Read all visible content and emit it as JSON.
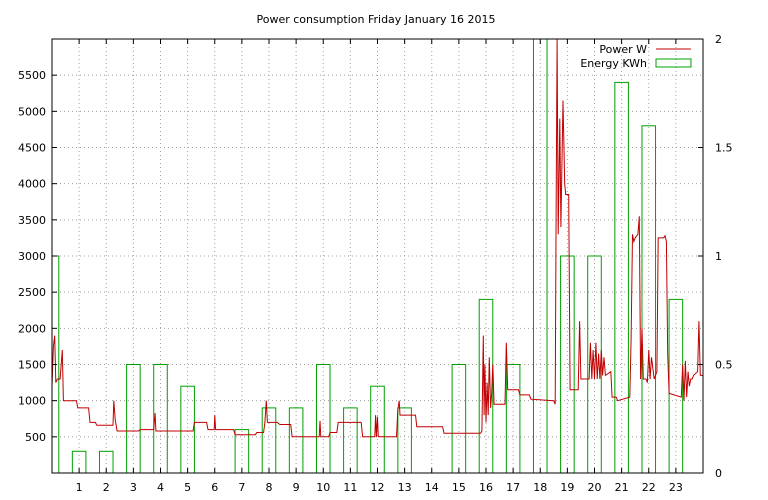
{
  "chart_data": {
    "type": "bar",
    "title": "Power consumption Friday January 16 2015",
    "grid": true,
    "legend_position": "top-right",
    "x_axis": {
      "range": [
        0,
        24
      ],
      "ticks": [
        "1",
        "2",
        "3",
        "4",
        "5",
        "6",
        "7",
        "8",
        "9",
        "10",
        "11",
        "12",
        "13",
        "14",
        "15",
        "16",
        "17",
        "18",
        "19",
        "20",
        "21",
        "22",
        "23"
      ]
    },
    "y_axis_left": {
      "range": [
        0,
        6000
      ],
      "ticks": [
        "500",
        "1000",
        "1500",
        "2000",
        "2500",
        "3000",
        "3500",
        "4000",
        "4500",
        "5000",
        "5500"
      ]
    },
    "y_axis_right": {
      "range": [
        0,
        2
      ],
      "ticks": [
        "0",
        "0.5",
        "1",
        "1.5",
        "2"
      ]
    },
    "series": [
      {
        "name": "Power W",
        "color": "#c00000",
        "axis": "left",
        "type": "line",
        "points": [
          [
            0.0,
            1200
          ],
          [
            0.05,
            1750
          ],
          [
            0.1,
            1900
          ],
          [
            0.14,
            1250
          ],
          [
            0.2,
            1300
          ],
          [
            0.3,
            1300
          ],
          [
            0.38,
            1700
          ],
          [
            0.42,
            1000
          ],
          [
            0.6,
            1000
          ],
          [
            0.9,
            1000
          ],
          [
            0.95,
            900
          ],
          [
            1.35,
            900
          ],
          [
            1.4,
            700
          ],
          [
            1.6,
            700
          ],
          [
            1.65,
            660
          ],
          [
            2.25,
            660
          ],
          [
            2.28,
            1000
          ],
          [
            2.33,
            740
          ],
          [
            2.4,
            580
          ],
          [
            2.6,
            580
          ],
          [
            3.2,
            580
          ],
          [
            3.25,
            600
          ],
          [
            3.5,
            600
          ],
          [
            3.75,
            600
          ],
          [
            3.8,
            830
          ],
          [
            3.83,
            580
          ],
          [
            4.3,
            580
          ],
          [
            5.2,
            580
          ],
          [
            5.25,
            700
          ],
          [
            5.7,
            700
          ],
          [
            5.75,
            600
          ],
          [
            5.98,
            600
          ],
          [
            6.0,
            800
          ],
          [
            6.03,
            600
          ],
          [
            6.7,
            600
          ],
          [
            6.75,
            530
          ],
          [
            7.5,
            530
          ],
          [
            7.55,
            560
          ],
          [
            7.8,
            560
          ],
          [
            7.85,
            700
          ],
          [
            7.9,
            1000
          ],
          [
            7.94,
            700
          ],
          [
            8.3,
            700
          ],
          [
            8.4,
            670
          ],
          [
            8.8,
            670
          ],
          [
            8.85,
            500
          ],
          [
            9.85,
            500
          ],
          [
            9.88,
            720
          ],
          [
            9.91,
            500
          ],
          [
            10.2,
            500
          ],
          [
            10.25,
            560
          ],
          [
            10.5,
            560
          ],
          [
            10.55,
            700
          ],
          [
            11.4,
            700
          ],
          [
            11.45,
            500
          ],
          [
            11.9,
            500
          ],
          [
            11.93,
            800
          ],
          [
            11.96,
            500
          ],
          [
            12.0,
            780
          ],
          [
            12.03,
            500
          ],
          [
            12.7,
            500
          ],
          [
            12.75,
            870
          ],
          [
            12.8,
            1000
          ],
          [
            12.83,
            800
          ],
          [
            13.4,
            800
          ],
          [
            13.45,
            640
          ],
          [
            14.4,
            640
          ],
          [
            14.45,
            550
          ],
          [
            15.8,
            550
          ],
          [
            15.85,
            580
          ],
          [
            15.9,
            1900
          ],
          [
            15.93,
            800
          ],
          [
            15.96,
            1500
          ],
          [
            16.0,
            700
          ],
          [
            16.04,
            1250
          ],
          [
            16.08,
            800
          ],
          [
            16.12,
            1600
          ],
          [
            16.17,
            900
          ],
          [
            16.21,
            1100
          ],
          [
            16.25,
            1500
          ],
          [
            16.3,
            950
          ],
          [
            16.7,
            950
          ],
          [
            16.75,
            1800
          ],
          [
            16.8,
            1150
          ],
          [
            17.2,
            1150
          ],
          [
            17.25,
            1080
          ],
          [
            17.6,
            1080
          ],
          [
            17.65,
            1020
          ],
          [
            18.5,
            1000
          ],
          [
            18.55,
            950
          ],
          [
            18.58,
            3300
          ],
          [
            18.62,
            6000
          ],
          [
            18.66,
            3300
          ],
          [
            18.72,
            4900
          ],
          [
            18.76,
            3400
          ],
          [
            18.84,
            5150
          ],
          [
            18.9,
            4000
          ],
          [
            18.94,
            3850
          ],
          [
            19.05,
            3850
          ],
          [
            19.1,
            1150
          ],
          [
            19.4,
            1150
          ],
          [
            19.45,
            2100
          ],
          [
            19.5,
            1300
          ],
          [
            19.8,
            1300
          ],
          [
            19.85,
            1800
          ],
          [
            19.9,
            1300
          ],
          [
            19.95,
            1700
          ],
          [
            20.0,
            1300
          ],
          [
            20.05,
            1800
          ],
          [
            20.1,
            1300
          ],
          [
            20.15,
            1650
          ],
          [
            20.2,
            1300
          ],
          [
            20.25,
            1700
          ],
          [
            20.3,
            1350
          ],
          [
            20.35,
            1600
          ],
          [
            20.4,
            1350
          ],
          [
            20.6,
            1400
          ],
          [
            20.65,
            1050
          ],
          [
            20.8,
            1050
          ],
          [
            20.85,
            1000
          ],
          [
            21.3,
            1050
          ],
          [
            21.35,
            1850
          ],
          [
            21.4,
            3300
          ],
          [
            21.45,
            3200
          ],
          [
            21.5,
            3250
          ],
          [
            21.6,
            3300
          ],
          [
            21.65,
            3550
          ],
          [
            21.7,
            1300
          ],
          [
            21.75,
            2000
          ],
          [
            21.8,
            1300
          ],
          [
            21.9,
            1300
          ],
          [
            21.95,
            1250
          ],
          [
            22.0,
            1700
          ],
          [
            22.05,
            1300
          ],
          [
            22.1,
            1600
          ],
          [
            22.2,
            1300
          ],
          [
            22.3,
            1400
          ],
          [
            22.35,
            3250
          ],
          [
            22.55,
            3250
          ],
          [
            22.6,
            3280
          ],
          [
            22.65,
            3200
          ],
          [
            22.7,
            1650
          ],
          [
            22.75,
            1100
          ],
          [
            23.2,
            1050
          ],
          [
            23.25,
            1500
          ],
          [
            23.3,
            1000
          ],
          [
            23.35,
            1550
          ],
          [
            23.4,
            1050
          ],
          [
            23.45,
            1400
          ],
          [
            23.5,
            1200
          ],
          [
            23.55,
            1300
          ],
          [
            23.6,
            1300
          ],
          [
            23.65,
            1350
          ],
          [
            23.8,
            1400
          ],
          [
            23.85,
            2100
          ],
          [
            23.9,
            1350
          ],
          [
            24.0,
            1350
          ]
        ]
      },
      {
        "name": "Energy KWh",
        "color": "#00a000",
        "axis": "right",
        "type": "bar",
        "boxes": [
          [
            0.0,
            0.25,
            1.0
          ],
          [
            0.75,
            1.25,
            0.1
          ],
          [
            1.75,
            2.25,
            0.1
          ],
          [
            2.75,
            3.25,
            0.5
          ],
          [
            3.75,
            4.25,
            0.5
          ],
          [
            4.75,
            5.25,
            0.4
          ],
          [
            6.75,
            7.25,
            0.2
          ],
          [
            7.75,
            8.25,
            0.3
          ],
          [
            8.75,
            9.25,
            0.3
          ],
          [
            9.75,
            10.25,
            0.5
          ],
          [
            10.75,
            11.25,
            0.3
          ],
          [
            11.75,
            12.25,
            0.4
          ],
          [
            12.75,
            13.25,
            0.3
          ],
          [
            14.75,
            15.25,
            0.5
          ],
          [
            15.75,
            16.25,
            0.8
          ],
          [
            16.75,
            17.25,
            0.5
          ],
          [
            17.75,
            18.25,
            2.0
          ],
          [
            18.75,
            19.25,
            1.0
          ],
          [
            19.75,
            20.25,
            1.0
          ],
          [
            20.75,
            21.25,
            1.8
          ],
          [
            21.75,
            22.25,
            1.6
          ],
          [
            22.75,
            23.25,
            0.8
          ]
        ]
      }
    ]
  }
}
